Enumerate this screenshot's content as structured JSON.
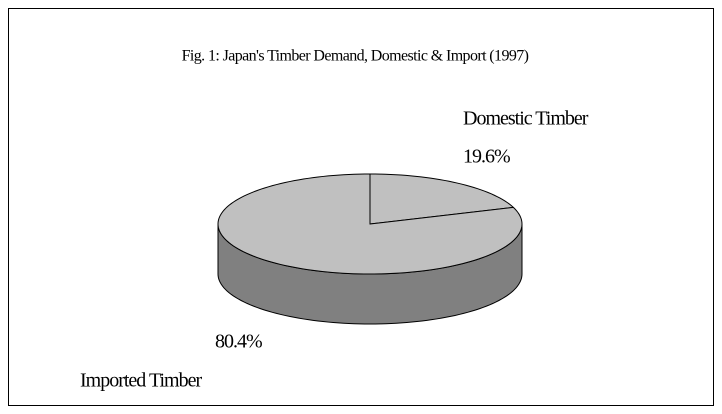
{
  "chart_data": {
    "type": "pie",
    "title": "Fig. 1: Japan's Timber Demand, Domestic & Import (1997)",
    "categories": [
      "Domestic Timber",
      "Imported Timber"
    ],
    "values": [
      19.6,
      80.4
    ],
    "value_labels": [
      "19.6%",
      "80.4%"
    ],
    "colors": [
      "#c0c0c0",
      "#c0c0c0"
    ],
    "side_colors": [
      "#808080",
      "#808080"
    ]
  }
}
